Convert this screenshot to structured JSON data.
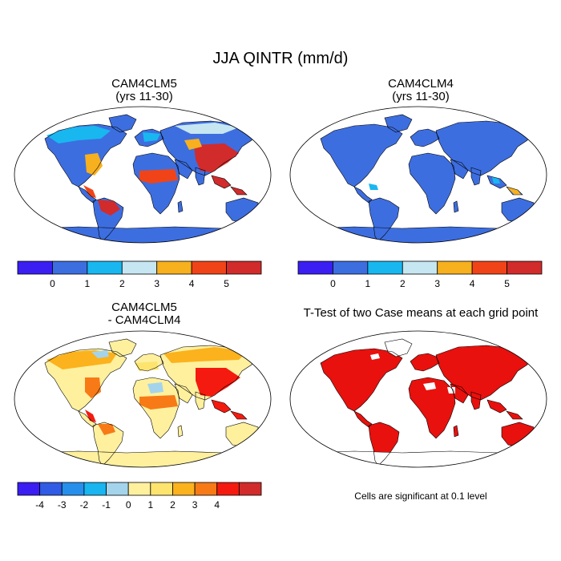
{
  "figure": {
    "title": "JJA QINTR (mm/d)",
    "note": "Cells are significant at 0.1 level"
  },
  "panels": {
    "top_left": {
      "title": "CAM4CLM5",
      "subtitle": "(yrs 11-30)"
    },
    "top_right": {
      "title": "CAM4CLM4",
      "subtitle": "(yrs 11-30)"
    },
    "bottom_left": {
      "title": "CAM4CLM5",
      "subtitle": "- CAM4CLM4"
    },
    "bottom_right": {
      "title": "T-Test of two Case means at each grid point"
    }
  },
  "colorbars": {
    "abs": {
      "colors": [
        "#3a1ef2",
        "#3d6ee0",
        "#19b7f0",
        "#c6e6f2",
        "#f7b01e",
        "#f04418",
        "#d12b2b"
      ],
      "labels": [
        "0",
        "1",
        "2",
        "3",
        "4",
        "5"
      ]
    },
    "diff": {
      "colors": [
        "#3a1ef2",
        "#2f5be5",
        "#268fec",
        "#18b5f0",
        "#a4d4ec",
        "#fff09e",
        "#fde46e",
        "#fbb21d",
        "#f77a16",
        "#f51a0f",
        "#d12b2b"
      ],
      "labels": [
        "-4",
        "-3",
        "-2",
        "-1",
        "0",
        "1",
        "2",
        "3",
        "4"
      ]
    }
  },
  "map_colors": {
    "ocean": "#ffffff",
    "abs_base": "#3d6ee0",
    "abs_light": "#19b7f0",
    "abs_pale": "#c6e6f2",
    "abs_orange": "#f7b01e",
    "abs_red": "#f04418",
    "abs_darkred": "#d12b2b",
    "diff_base": "#fff09e",
    "diff_yellow": "#fde46e",
    "diff_orange": "#fbb21d",
    "diff_darkorange": "#f77a16",
    "diff_red": "#f51a0f",
    "diff_blue": "#a4d4ec",
    "sig_red": "#e8110d"
  }
}
